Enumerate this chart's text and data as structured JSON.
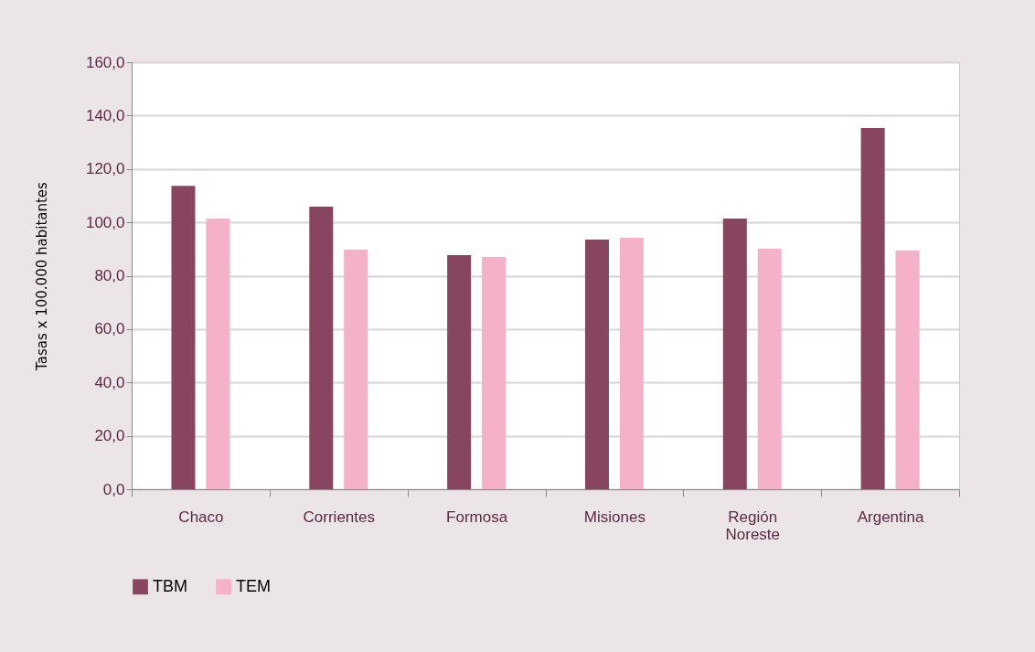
{
  "chart_data": {
    "type": "bar",
    "ylabel": "Tasas x 100.000 habitantes",
    "categories": [
      "Chaco",
      "Corrientes",
      "Formosa",
      "Misiones",
      "Región Noreste",
      "Argentina"
    ],
    "series": [
      {
        "name": "TBM",
        "color": "#88455f",
        "values": [
          113.7,
          105.9,
          87.7,
          93.5,
          101.4,
          135.3
        ]
      },
      {
        "name": "TEM",
        "color": "#f4b1c8",
        "values": [
          101.4,
          89.8,
          87.0,
          94.2,
          90.1,
          89.4
        ]
      }
    ],
    "ylim": [
      0,
      160
    ],
    "yticks": [
      {
        "value": 0,
        "label": "0,0"
      },
      {
        "value": 20,
        "label": "20,0"
      },
      {
        "value": 40,
        "label": "40,0"
      },
      {
        "value": 60,
        "label": "60,0"
      },
      {
        "value": 80,
        "label": "80,0"
      },
      {
        "value": 100,
        "label": "100,0"
      },
      {
        "value": 120,
        "label": "120,0"
      },
      {
        "value": 140,
        "label": "140,0"
      },
      {
        "value": 160,
        "label": "160,0"
      }
    ],
    "grid": "y",
    "legend": "bottom"
  }
}
